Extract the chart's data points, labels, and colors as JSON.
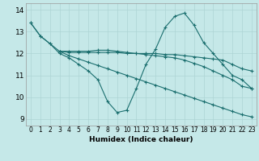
{
  "title": "",
  "xlabel": "Humidex (Indice chaleur)",
  "bg_color": "#c5e8e8",
  "line_color": "#1a6e6e",
  "grid_color": "#aed4d4",
  "xlim": [
    -0.5,
    23.5
  ],
  "ylim": [
    8.7,
    14.3
  ],
  "xticks": [
    0,
    1,
    2,
    3,
    4,
    5,
    6,
    7,
    8,
    9,
    10,
    11,
    12,
    13,
    14,
    15,
    16,
    17,
    18,
    19,
    20,
    21,
    22,
    23
  ],
  "yticks": [
    9,
    10,
    11,
    12,
    13,
    14
  ],
  "line1_x": [
    0,
    1,
    2,
    3,
    4,
    5,
    6,
    7,
    8,
    9,
    10,
    11,
    12,
    13,
    14,
    15,
    16,
    17,
    18,
    19,
    20,
    21,
    22,
    23
  ],
  "line1_y": [
    13.4,
    12.8,
    12.45,
    12.0,
    11.8,
    11.5,
    11.2,
    10.8,
    9.8,
    9.3,
    9.4,
    10.4,
    11.5,
    12.2,
    13.2,
    13.7,
    13.85,
    13.3,
    12.5,
    12.0,
    11.5,
    11.0,
    10.8,
    10.4
  ],
  "line2_x": [
    0,
    1,
    2,
    3,
    4,
    5,
    6,
    7,
    8,
    9,
    10,
    11,
    12,
    13,
    14,
    15,
    16,
    17,
    18,
    19,
    20,
    21,
    22,
    23
  ],
  "line2_y": [
    13.4,
    12.8,
    12.45,
    12.1,
    12.05,
    12.05,
    12.05,
    12.05,
    12.05,
    12.05,
    12.0,
    12.0,
    12.0,
    12.0,
    11.95,
    11.95,
    11.9,
    11.85,
    11.8,
    11.75,
    11.7,
    11.5,
    11.3,
    11.2
  ],
  "line3_x": [
    3,
    4,
    5,
    6,
    7,
    8,
    9,
    10,
    11,
    12,
    13,
    14,
    15,
    16,
    17,
    18,
    19,
    20,
    21,
    22,
    23
  ],
  "line3_y": [
    12.1,
    12.1,
    12.1,
    12.1,
    12.15,
    12.15,
    12.1,
    12.05,
    12.0,
    11.95,
    11.9,
    11.85,
    11.8,
    11.7,
    11.55,
    11.4,
    11.2,
    11.0,
    10.8,
    10.5,
    10.4
  ],
  "line4_x": [
    3,
    4,
    5,
    6,
    7,
    8,
    9,
    10,
    11,
    12,
    13,
    14,
    15,
    16,
    17,
    18,
    19,
    20,
    21,
    22,
    23
  ],
  "line4_y": [
    12.1,
    11.9,
    11.75,
    11.6,
    11.45,
    11.3,
    11.15,
    11.0,
    10.85,
    10.7,
    10.55,
    10.4,
    10.25,
    10.1,
    9.95,
    9.8,
    9.65,
    9.5,
    9.35,
    9.2,
    9.1
  ]
}
